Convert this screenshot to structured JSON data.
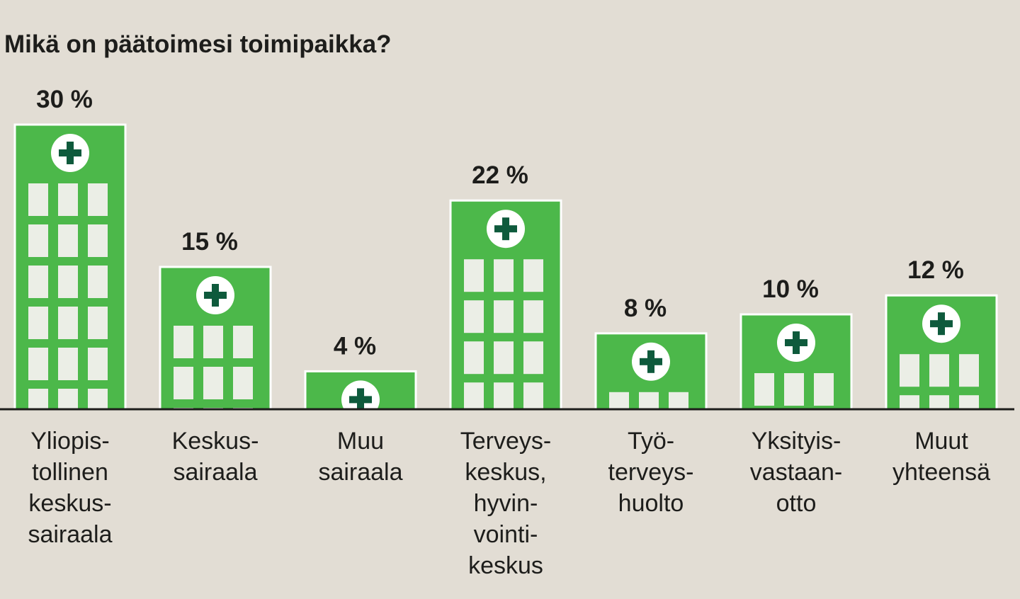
{
  "chart_data": {
    "type": "bar",
    "title": "Mikä on päätoimesi toimipaikka?",
    "categories": [
      "Yliopis-\ntollinen\nkeskus-\nsairaala",
      "Keskus-\nsairaala",
      "Muu\nsairaala",
      "Terveys-\nkeskus,\nhyvin-\nvointi-\nkeskus",
      "Työ-\nterveys-\nhuolto",
      "Yksityis-\nvastaan-\notto",
      "Muut\nyhteensä"
    ],
    "values": [
      30,
      15,
      4,
      22,
      8,
      10,
      12
    ],
    "value_labels": [
      "30 %",
      "15 %",
      "4 %",
      "22 %",
      "8 %",
      "10 %",
      "12 %"
    ],
    "color": "#4cb84a"
  }
}
